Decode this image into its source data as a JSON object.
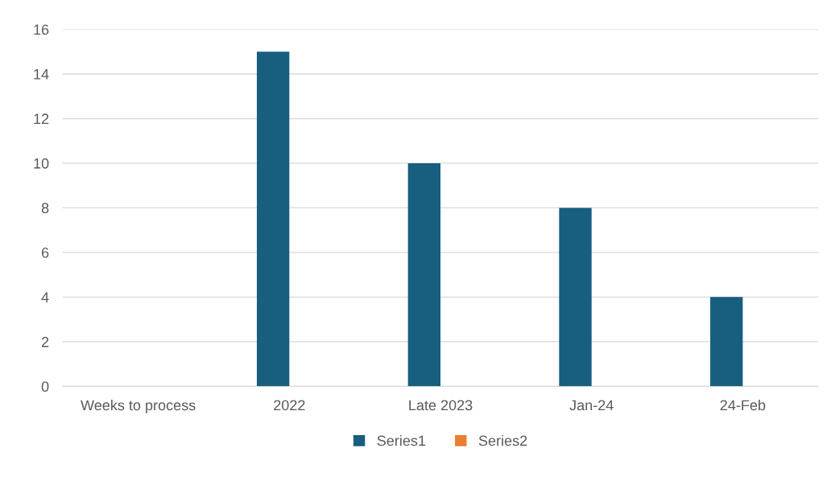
{
  "chart_data": {
    "type": "bar",
    "categories": [
      "Weeks to process",
      "2022",
      "Late 2023",
      "Jan-24",
      "24-Feb"
    ],
    "series": [
      {
        "name": "Series1",
        "color": "#175e7f",
        "values": [
          null,
          15,
          10,
          8,
          4
        ]
      },
      {
        "name": "Series2",
        "color": "#ed7d31",
        "values": [
          null,
          null,
          null,
          null,
          null
        ]
      }
    ],
    "ylim": [
      0,
      16
    ],
    "yticks": [
      0,
      2,
      4,
      6,
      8,
      10,
      12,
      14,
      16
    ],
    "grid": "y",
    "legend": "bottom"
  }
}
